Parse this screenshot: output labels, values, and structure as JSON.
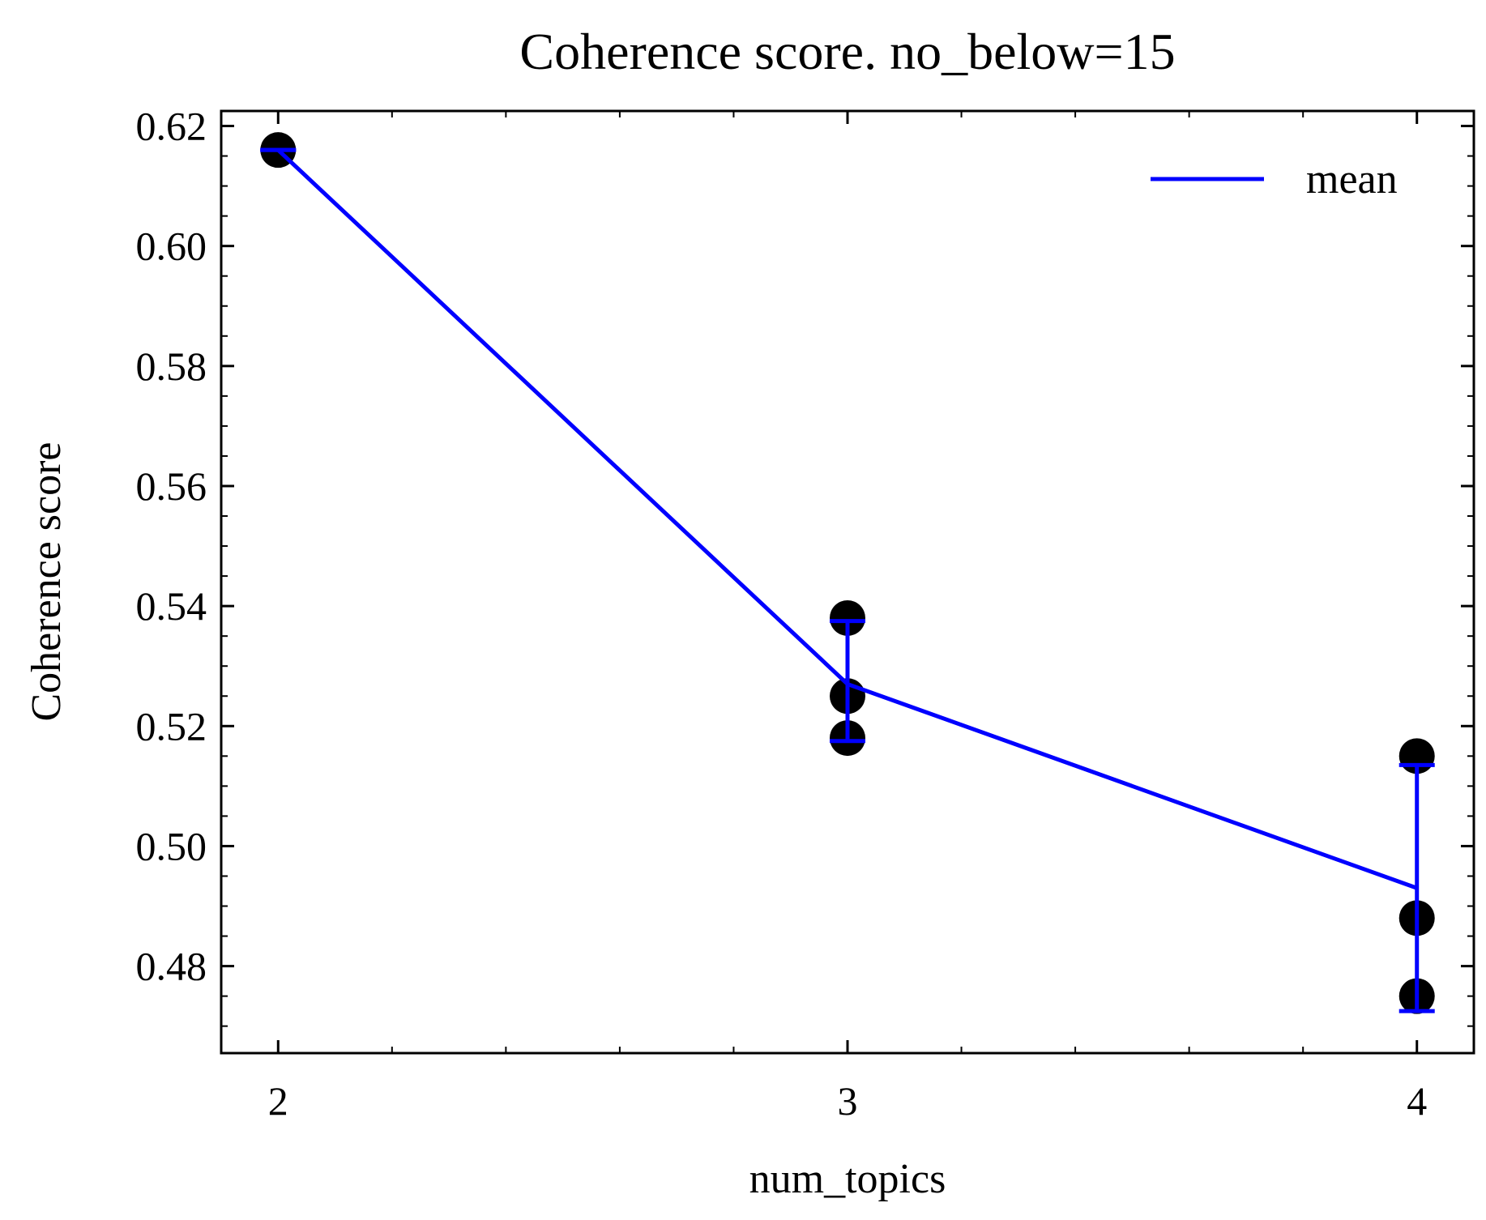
{
  "chart_data": {
    "type": "scatter",
    "title": "Coherence score. no_below=15",
    "xlabel": "num_topics",
    "ylabel": "Coherence score",
    "xlim": [
      1.9,
      4.1
    ],
    "ylim": [
      0.4655,
      0.6225
    ],
    "x_ticks": [
      2,
      3,
      4
    ],
    "x_tick_labels": [
      "2",
      "3",
      "4"
    ],
    "y_ticks": [
      0.48,
      0.5,
      0.52,
      0.54,
      0.56,
      0.58,
      0.6,
      0.62
    ],
    "y_tick_labels": [
      "0.48",
      "0.50",
      "0.52",
      "0.54",
      "0.56",
      "0.58",
      "0.60",
      "0.62"
    ],
    "grid": false,
    "legend_position": "top-right",
    "colors": {
      "points": "#000000",
      "mean": "#0000ff"
    },
    "points": [
      {
        "x": 2,
        "y": 0.616
      },
      {
        "x": 3,
        "y": 0.538
      },
      {
        "x": 3,
        "y": 0.525
      },
      {
        "x": 3,
        "y": 0.518
      },
      {
        "x": 4,
        "y": 0.515
      },
      {
        "x": 4,
        "y": 0.488
      },
      {
        "x": 4,
        "y": 0.475
      }
    ],
    "series": [
      {
        "name": "mean",
        "x": [
          2,
          3,
          4
        ],
        "y": [
          0.616,
          0.527,
          0.493
        ],
        "error_low": [
          0.616,
          0.5175,
          0.4725
        ],
        "error_high": [
          0.616,
          0.5375,
          0.5135
        ]
      }
    ]
  }
}
